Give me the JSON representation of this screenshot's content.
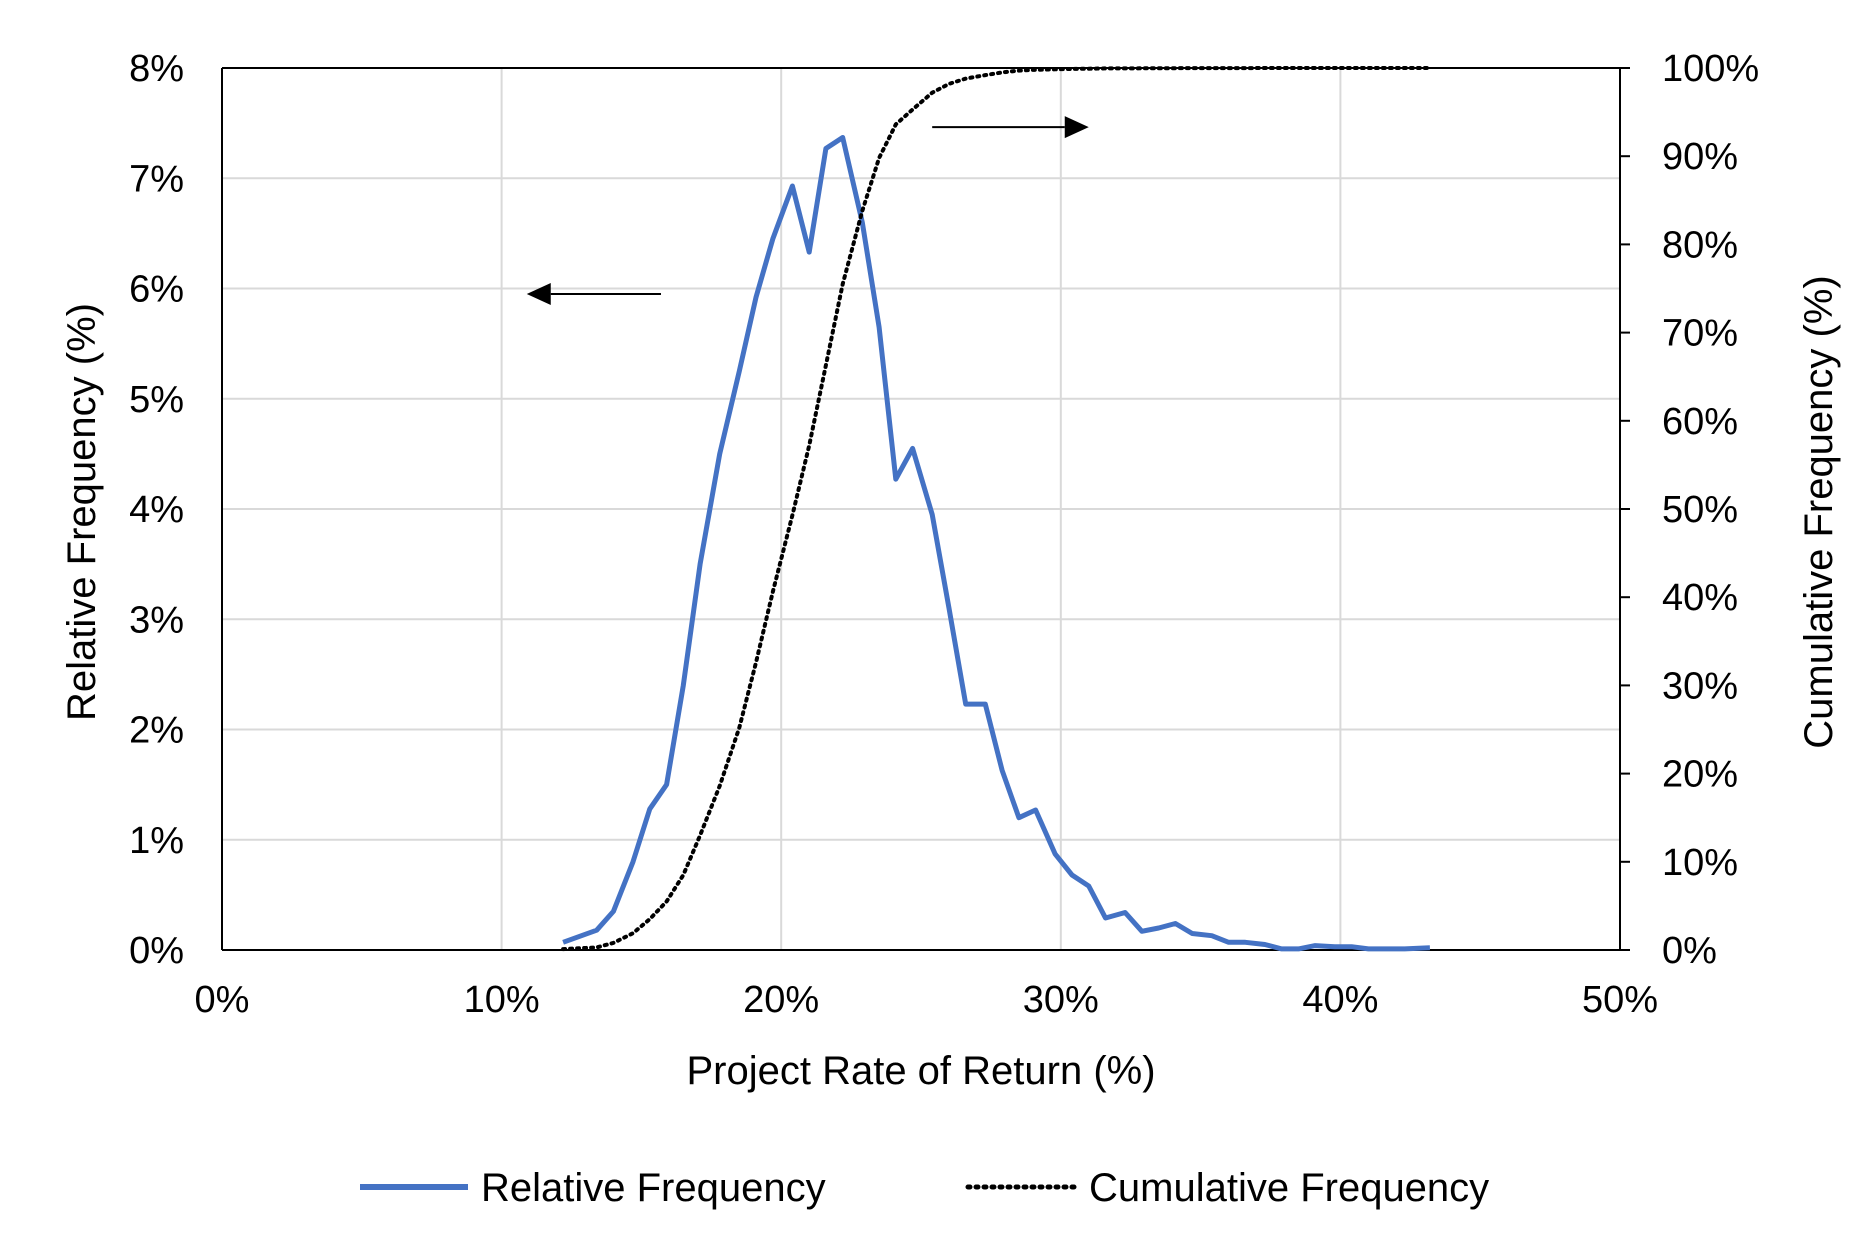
{
  "chart_data": {
    "type": "line",
    "title": "",
    "xlabel": "Project Rate of Return (%)",
    "ylabel_left": "Relative Frequency (%)",
    "ylabel_right": "Cumulative Frequency (%)",
    "xlim": [
      0,
      50
    ],
    "ylim_left": [
      0,
      8
    ],
    "ylim_right": [
      0,
      100
    ],
    "grid": true,
    "x_ticks": [
      0,
      10,
      20,
      30,
      40,
      50
    ],
    "y_left_ticks": [
      0,
      1,
      2,
      3,
      4,
      5,
      6,
      7,
      8
    ],
    "y_right_ticks": [
      0,
      10,
      20,
      30,
      40,
      50,
      60,
      70,
      80,
      90,
      100
    ],
    "x_tick_labels": [
      "0%",
      "10%",
      "20%",
      "30%",
      "40%",
      "50%"
    ],
    "y_left_tick_labels": [
      "0%",
      "1%",
      "2%",
      "3%",
      "4%",
      "5%",
      "6%",
      "7%",
      "8%"
    ],
    "y_right_tick_labels": [
      "0%",
      "10%",
      "20%",
      "30%",
      "40%",
      "50%",
      "60%",
      "70%",
      "80%",
      "90%",
      "100%"
    ],
    "legend_position": "bottom",
    "colors": {
      "relative": "#4472c4",
      "cumulative": "#000000",
      "grid": "#d9d9d9"
    },
    "annotations": [
      {
        "name": "arrow-left-axis",
        "direction": "left",
        "points_to": "Relative Frequency axis",
        "from": [
          15.7,
          5.95
        ],
        "to": [
          10.9,
          5.95
        ]
      },
      {
        "name": "arrow-right-axis",
        "direction": "right",
        "points_to": "Cumulative Frequency axis",
        "from": [
          25.4,
          93.3
        ],
        "to": [
          31.0,
          93.3
        ]
      }
    ],
    "series": [
      {
        "name": "Relative Frequency",
        "axis": "left",
        "style": "solid",
        "x": [
          12.2,
          13.4,
          14.0,
          14.7,
          15.3,
          15.9,
          16.5,
          17.1,
          17.8,
          18.5,
          19.1,
          19.7,
          20.4,
          21.0,
          21.6,
          22.2,
          22.9,
          23.5,
          24.1,
          24.7,
          25.4,
          26.0,
          26.6,
          27.3,
          27.9,
          28.5,
          29.1,
          29.8,
          30.4,
          31.0,
          31.6,
          32.3,
          32.9,
          33.5,
          34.1,
          34.7,
          35.4,
          36.0,
          36.6,
          37.3,
          37.9,
          38.5,
          39.1,
          39.8,
          40.4,
          41.0,
          41.6,
          42.3,
          43.2
        ],
        "values": [
          0.07,
          0.18,
          0.35,
          0.8,
          1.28,
          1.5,
          2.4,
          3.5,
          4.5,
          5.25,
          5.92,
          6.45,
          6.93,
          6.33,
          7.27,
          7.37,
          6.6,
          5.65,
          4.27,
          4.55,
          3.95,
          3.1,
          2.23,
          2.23,
          1.63,
          1.2,
          1.27,
          0.87,
          0.68,
          0.58,
          0.29,
          0.34,
          0.17,
          0.2,
          0.24,
          0.15,
          0.13,
          0.07,
          0.07,
          0.05,
          0.01,
          0.01,
          0.04,
          0.03,
          0.03,
          0.01,
          0.01,
          0.01,
          0.02
        ]
      },
      {
        "name": "Cumulative Frequency",
        "axis": "right",
        "style": "dotted",
        "x": [
          12.2,
          13.4,
          14.0,
          14.7,
          15.3,
          15.9,
          16.5,
          17.1,
          17.8,
          18.5,
          19.1,
          19.7,
          20.4,
          21.0,
          21.6,
          22.2,
          22.9,
          23.5,
          24.1,
          24.7,
          25.4,
          26.0,
          26.6,
          27.3,
          27.9,
          28.5,
          29.1,
          29.8,
          30.4,
          31.0,
          31.6,
          32.3,
          32.9,
          33.5,
          34.1,
          34.7,
          35.4,
          36.0,
          36.6,
          37.3,
          37.9,
          38.5,
          39.1,
          39.8,
          40.4,
          41.0,
          41.6,
          42.3,
          43.2
        ],
        "values": [
          0.1,
          0.3,
          0.8,
          1.9,
          3.5,
          5.5,
          8.5,
          13.0,
          18.6,
          25.2,
          32.6,
          40.6,
          49.3,
          57.2,
          66.3,
          75.5,
          83.8,
          89.8,
          93.6,
          95.3,
          97.2,
          98.2,
          98.8,
          99.2,
          99.5,
          99.7,
          99.8,
          99.85,
          99.9,
          99.92,
          99.95,
          99.96,
          99.97,
          99.98,
          99.98,
          99.99,
          99.99,
          99.99,
          99.99,
          100,
          100,
          100,
          100,
          100,
          100,
          100,
          100,
          100,
          100
        ]
      }
    ]
  }
}
